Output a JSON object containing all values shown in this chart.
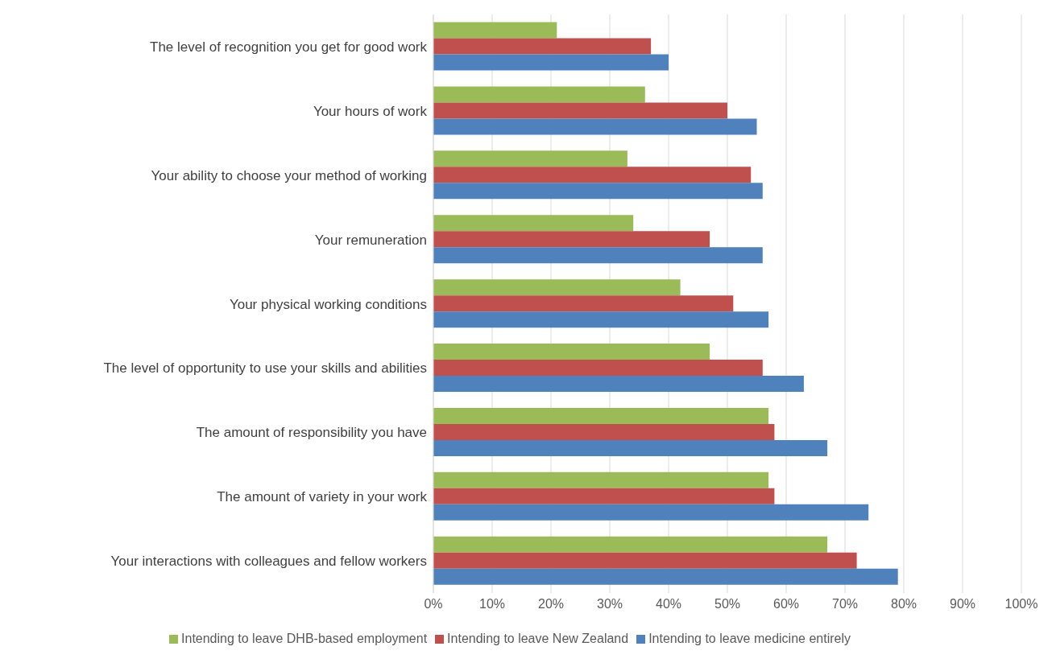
{
  "chart_data": {
    "type": "bar",
    "orientation": "horizontal",
    "categories": [
      "The level of recognition you get for good work",
      "Your hours of work",
      "Your ability to choose your method of working",
      "Your remuneration",
      "Your physical working conditions",
      "The level of opportunity to use your skills and abilities",
      "The amount of responsibility you have",
      "The amount of variety in your work",
      "Your interactions with colleagues and fellow workers"
    ],
    "series": [
      {
        "name": "Intending to leave DHB-based employment",
        "color": "#9bbb59",
        "values": [
          21,
          36,
          33,
          34,
          42,
          47,
          57,
          57,
          67
        ]
      },
      {
        "name": "Intending to leave New Zealand",
        "color": "#c0504d",
        "values": [
          37,
          50,
          54,
          47,
          51,
          56,
          58,
          58,
          72
        ]
      },
      {
        "name": "Intending to leave medicine entirely",
        "color": "#4f81bd",
        "values": [
          40,
          55,
          56,
          56,
          57,
          63,
          67,
          74,
          79
        ]
      }
    ],
    "xlim": [
      0,
      100
    ],
    "xticks": [
      {
        "value": 0,
        "label": "0%"
      },
      {
        "value": 10,
        "label": "10%"
      },
      {
        "value": 20,
        "label": "20%"
      },
      {
        "value": 30,
        "label": "30%"
      },
      {
        "value": 40,
        "label": "40%"
      },
      {
        "value": 50,
        "label": "50%"
      },
      {
        "value": 60,
        "label": "60%"
      },
      {
        "value": 70,
        "label": "70%"
      },
      {
        "value": 80,
        "label": "80%"
      },
      {
        "value": 90,
        "label": "90%"
      },
      {
        "value": 100,
        "label": "100%"
      }
    ],
    "grid": "x",
    "legend": "bottom"
  }
}
